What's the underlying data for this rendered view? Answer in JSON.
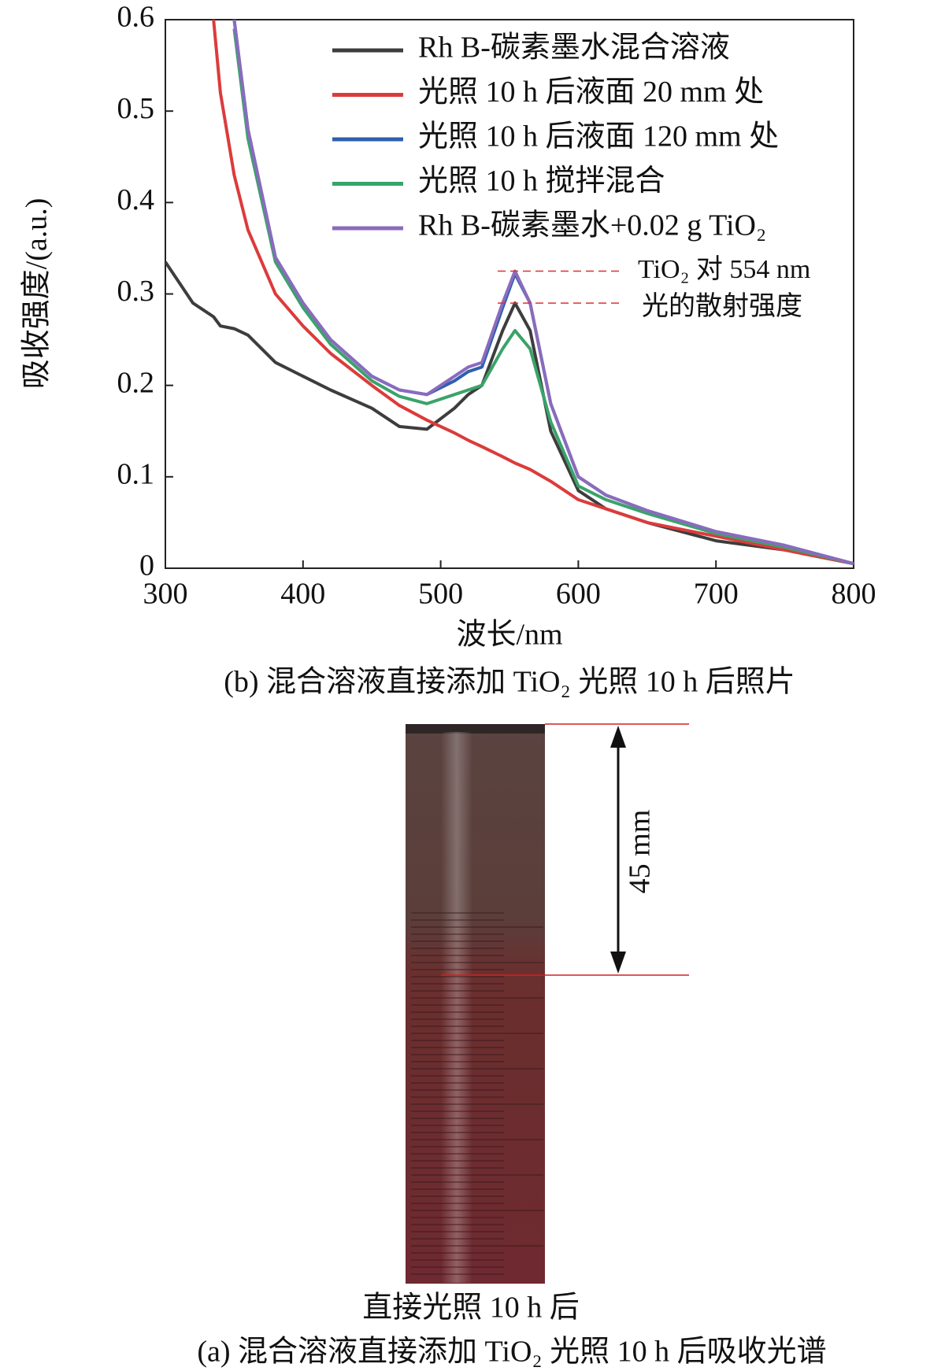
{
  "chart_data": {
    "type": "line",
    "xlabel": "波长/nm",
    "ylabel": "吸收强度/(a.u.)",
    "x": [
      300,
      320,
      335,
      340,
      350,
      360,
      380,
      400,
      420,
      450,
      470,
      490,
      510,
      520,
      530,
      545,
      554,
      565,
      580,
      600,
      620,
      650,
      700,
      750,
      800
    ],
    "xlim": [
      300,
      800
    ],
    "xticks": [
      300,
      400,
      500,
      600,
      700,
      800
    ],
    "ylim": [
      0,
      0.6
    ],
    "yticks": [
      0,
      0.1,
      0.2,
      0.3,
      0.4,
      0.5,
      0.6
    ],
    "series": [
      {
        "name": "Rh B-碳素墨水混合溶液",
        "color": "#3d3d3d",
        "values": [
          0.335,
          0.29,
          0.275,
          0.265,
          0.262,
          0.255,
          0.225,
          0.21,
          0.195,
          0.175,
          0.155,
          0.152,
          0.175,
          0.19,
          0.2,
          0.26,
          0.29,
          0.26,
          0.15,
          0.085,
          0.065,
          0.05,
          0.03,
          0.02,
          0.005
        ]
      },
      {
        "name": "光照 10 h 后液面 20 mm 处",
        "color": "#dc3b3b",
        "values": [
          null,
          null,
          0.6,
          0.52,
          0.43,
          0.37,
          0.3,
          0.265,
          0.235,
          0.2,
          0.178,
          0.162,
          0.148,
          0.14,
          0.133,
          0.122,
          0.115,
          0.108,
          0.095,
          0.075,
          0.065,
          0.05,
          0.035,
          0.02,
          0.005
        ]
      },
      {
        "name": "光照 10 h 后液面 120 mm 处",
        "color": "#2f5fae",
        "values": [
          null,
          null,
          null,
          null,
          0.6,
          0.48,
          0.34,
          0.29,
          0.25,
          0.21,
          0.195,
          0.19,
          0.205,
          0.215,
          0.22,
          0.285,
          0.322,
          0.29,
          0.18,
          0.1,
          0.08,
          0.063,
          0.04,
          0.025,
          0.005
        ]
      },
      {
        "name": "光照 10 h 搅拌混合",
        "color": "#3aa36a",
        "values": [
          null,
          null,
          null,
          null,
          0.59,
          0.47,
          0.335,
          0.285,
          0.245,
          0.205,
          0.188,
          0.18,
          0.19,
          0.195,
          0.2,
          0.24,
          0.26,
          0.24,
          0.16,
          0.09,
          0.075,
          0.06,
          0.038,
          0.023,
          0.005
        ]
      },
      {
        "name": "Rh B-碳素墨水+0.02 g TiO₂",
        "color": "#8a6bbd",
        "values": [
          null,
          null,
          null,
          null,
          0.6,
          0.48,
          0.34,
          0.29,
          0.25,
          0.21,
          0.195,
          0.19,
          0.21,
          0.22,
          0.225,
          0.29,
          0.325,
          0.29,
          0.18,
          0.1,
          0.08,
          0.063,
          0.04,
          0.025,
          0.005
        ]
      }
    ],
    "annotations": [
      "TiO₂ 对 554 nm",
      "光的散射强度"
    ]
  },
  "figure": {
    "caption_b": "(b) 混合溶液直接添加 TiO₂ 光照 10 h 后照片",
    "measure": "45 mm",
    "photo_label": "直接光照 10 h 后",
    "caption_a": "(a) 混合溶液直接添加 TiO₂ 光照 10 h 后吸收光谱"
  }
}
